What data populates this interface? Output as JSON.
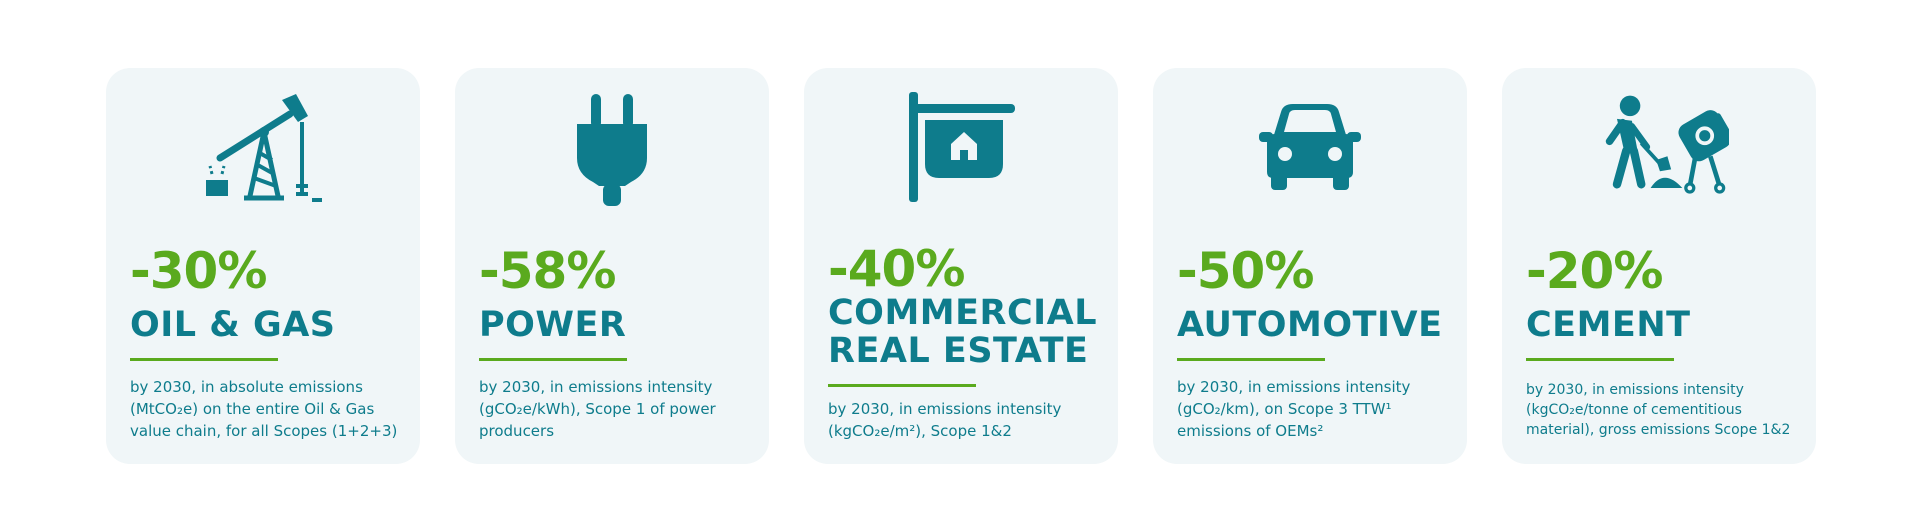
{
  "colors": {
    "accent_green": "#5aaa1e",
    "teal": "#0e7c8c",
    "card_bg": "#f0f6f8"
  },
  "cards": [
    {
      "icon": "oil-pump-jack-icon",
      "percent": "-30%",
      "sector": "OIL & GAS",
      "sector_lines": [
        "OIL & GAS"
      ],
      "description": "by 2030, in absolute emissions (MtCO₂e) on the entire Oil & Gas value chain, for all Scopes (1+2+3)"
    },
    {
      "icon": "power-plug-icon",
      "percent": "-58%",
      "sector": "POWER",
      "sector_lines": [
        "POWER"
      ],
      "description": "by 2030, in emissions intensity (gCO₂e/kWh), Scope 1 of power producers"
    },
    {
      "icon": "real-estate-sign-icon",
      "percent": "-40%",
      "sector": "COMMERCIAL REAL ESTATE",
      "sector_lines": [
        "COMMERCIAL",
        "REAL ESTATE"
      ],
      "description": "by 2030, in emissions intensity (kgCO₂e/m²), Scope 1&2"
    },
    {
      "icon": "car-icon",
      "percent": "-50%",
      "sector": "AUTOMOTIVE",
      "sector_lines": [
        "AUTOMOTIVE"
      ],
      "description": "by 2030, in emissions intensity (gCO₂/km), on Scope 3 TTW¹ emissions of OEMs²"
    },
    {
      "icon": "cement-mixer-worker-icon",
      "percent": "-20%",
      "sector": "CEMENT",
      "sector_lines": [
        "CEMENT"
      ],
      "description": "by 2030, in emissions intensity (kgCO₂e/tonne of cementitious material), gross emissions Scope 1&2"
    }
  ]
}
